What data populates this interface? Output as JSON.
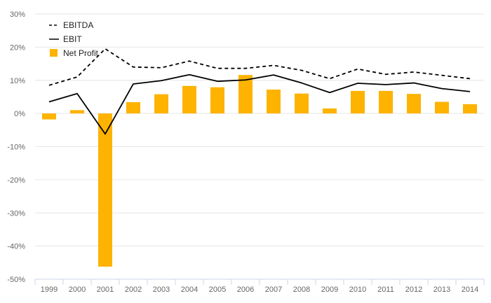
{
  "chart_data": {
    "type": "bar",
    "categories": [
      "1999",
      "2000",
      "2001",
      "2002",
      "2003",
      "2004",
      "2005",
      "2006",
      "2007",
      "2008",
      "2009",
      "2010",
      "2011",
      "2012",
      "2013",
      "2014"
    ],
    "ylim": [
      -50,
      30
    ],
    "yticks": [
      30,
      20,
      10,
      0,
      -10,
      -20,
      -30,
      -40,
      -50
    ],
    "ytick_labels": [
      "30%",
      "20%",
      "10%",
      "0%",
      "-10%",
      "-20%",
      "-30%",
      "-40%",
      "-50%"
    ],
    "grid": true,
    "legend_position": "top-left",
    "series": [
      {
        "name": "EBITDA",
        "type": "line",
        "style": "dashed",
        "color": "#000000",
        "values": [
          8.5,
          11,
          19.5,
          14,
          13.8,
          15.8,
          13.6,
          13.6,
          14.5,
          13,
          10.5,
          13.4,
          11.8,
          12.5,
          11.5,
          10.5
        ]
      },
      {
        "name": "EBIT",
        "type": "line",
        "style": "solid",
        "color": "#000000",
        "values": [
          3.5,
          6,
          -6.2,
          8.9,
          9.9,
          11.7,
          9.7,
          10.1,
          11.6,
          9.2,
          6.3,
          9.1,
          8.7,
          9.2,
          7.5,
          6.6
        ]
      },
      {
        "name": "Net Profit",
        "type": "bar",
        "color": "#FDB300",
        "values": [
          -1.8,
          1.0,
          -46.2,
          3.4,
          5.8,
          8.3,
          7.9,
          11.6,
          7.2,
          6.0,
          1.5,
          6.8,
          6.8,
          5.9,
          3.5,
          2.8
        ]
      }
    ]
  }
}
